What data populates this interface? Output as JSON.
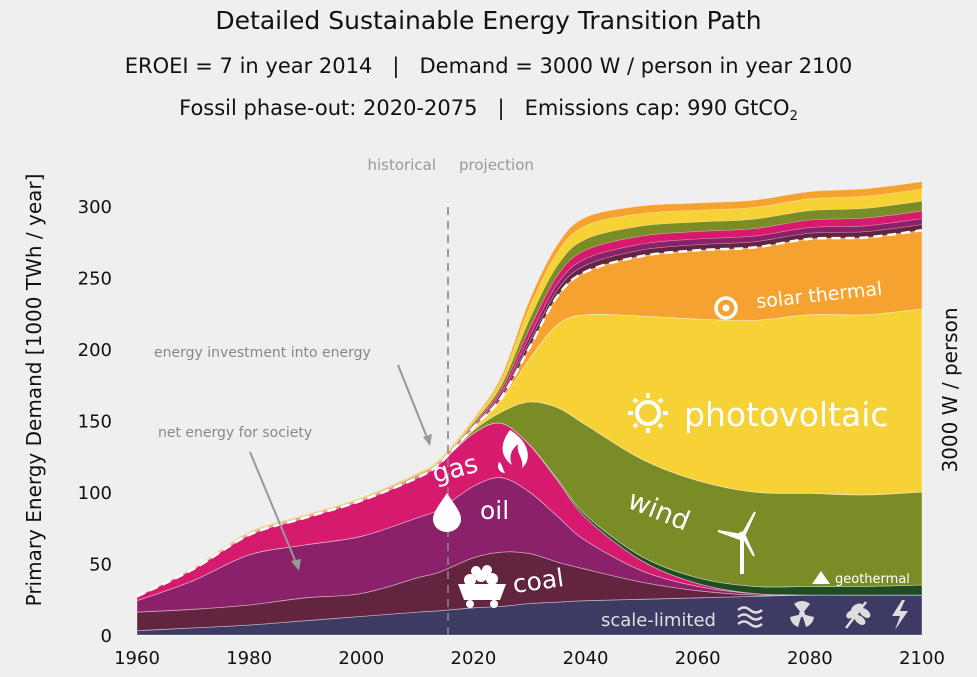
{
  "title": "Detailed Sustainable Energy Transition Path",
  "subtitle1": "EROEI = 7 in year 2014   |   Demand = 3000 W / person in year 2100",
  "subtitle2_main": "Fossil phase-out: 2020-2075   |   Emissions cap: 990 GtCO",
  "subtitle2_sub": "2",
  "colors": {
    "background": "#efefef",
    "scale_limited": "#3d3a63",
    "coal": "#62243f",
    "oil": "#8b216b",
    "gas": "#d61a6e",
    "geothermal": "#1f4d23",
    "wind": "#7a8c26",
    "photovoltaic": "#f6d236",
    "solar_thermal": "#f5a231"
  },
  "labels": {
    "historical": "historical",
    "projection": "projection",
    "energy_investment": "energy investment into energy",
    "net_energy": "net energy for society",
    "gas": "gas",
    "oil": "oil",
    "coal": "coal",
    "wind": "wind",
    "photovoltaic": "photovoltaic",
    "solar_thermal": "solar thermal",
    "geothermal": "geothermal",
    "scale_limited": "scale-limited"
  },
  "chart_data": {
    "type": "area",
    "title": "Detailed Sustainable Energy Transition Path",
    "ylabel": "Primary Energy Demand [1000 TWh / year]",
    "ylabel_right": "3000 W / person",
    "xlim": [
      1960,
      2100
    ],
    "ylim": [
      0,
      320
    ],
    "x_ticks": [
      1960,
      1980,
      2000,
      2020,
      2040,
      2060,
      2080,
      2100
    ],
    "y_ticks": [
      0,
      50,
      100,
      150,
      200,
      250,
      300
    ],
    "divider_year": 2014,
    "x": [
      1960,
      1970,
      1980,
      1990,
      2000,
      2010,
      2014,
      2020,
      2025,
      2030,
      2035,
      2040,
      2050,
      2060,
      2070,
      2080,
      2090,
      2100
    ],
    "series": [
      {
        "name": "scale-limited",
        "values": [
          3,
          5,
          7,
          10,
          13,
          16,
          17,
          19,
          20,
          22,
          23,
          24,
          25,
          26,
          27,
          28,
          28,
          28
        ]
      },
      {
        "name": "coal",
        "values": [
          13,
          13,
          14,
          16,
          16,
          24,
          27,
          35,
          38,
          35,
          28,
          22,
          12,
          5,
          1,
          0,
          0,
          0
        ]
      },
      {
        "name": "oil",
        "values": [
          8,
          20,
          35,
          37,
          40,
          42,
          44,
          50,
          52,
          43,
          32,
          20,
          8,
          3,
          1,
          0,
          0,
          0
        ]
      },
      {
        "name": "gas",
        "values": [
          3,
          8,
          14,
          19,
          25,
          28,
          32,
          37,
          38,
          33,
          25,
          16,
          7,
          2,
          0,
          0,
          0,
          0
        ]
      },
      {
        "name": "geothermal",
        "values": [
          0,
          0,
          0,
          0,
          0,
          0,
          0,
          0,
          0,
          0,
          1,
          2,
          3,
          4,
          5,
          6,
          6,
          7
        ]
      },
      {
        "name": "wind",
        "values": [
          0,
          0,
          0,
          0,
          0,
          0,
          0,
          2,
          8,
          30,
          50,
          63,
          68,
          68,
          66,
          65,
          64,
          65
        ]
      },
      {
        "name": "photovoltaic",
        "values": [
          0,
          0,
          0,
          0,
          0,
          0,
          0,
          2,
          8,
          30,
          58,
          77,
          100,
          113,
          120,
          125,
          126,
          128
        ]
      },
      {
        "name": "solar thermal",
        "values": [
          0,
          0,
          0,
          0,
          0,
          0,
          0,
          0,
          2,
          8,
          20,
          30,
          42,
          48,
          51,
          53,
          54,
          55
        ]
      },
      {
        "name": "energy investment into energy",
        "values": [
          0,
          1,
          2,
          2,
          2,
          3,
          3,
          6,
          15,
          33,
          36,
          38,
          35,
          33,
          33,
          33,
          34,
          34
        ]
      }
    ]
  }
}
